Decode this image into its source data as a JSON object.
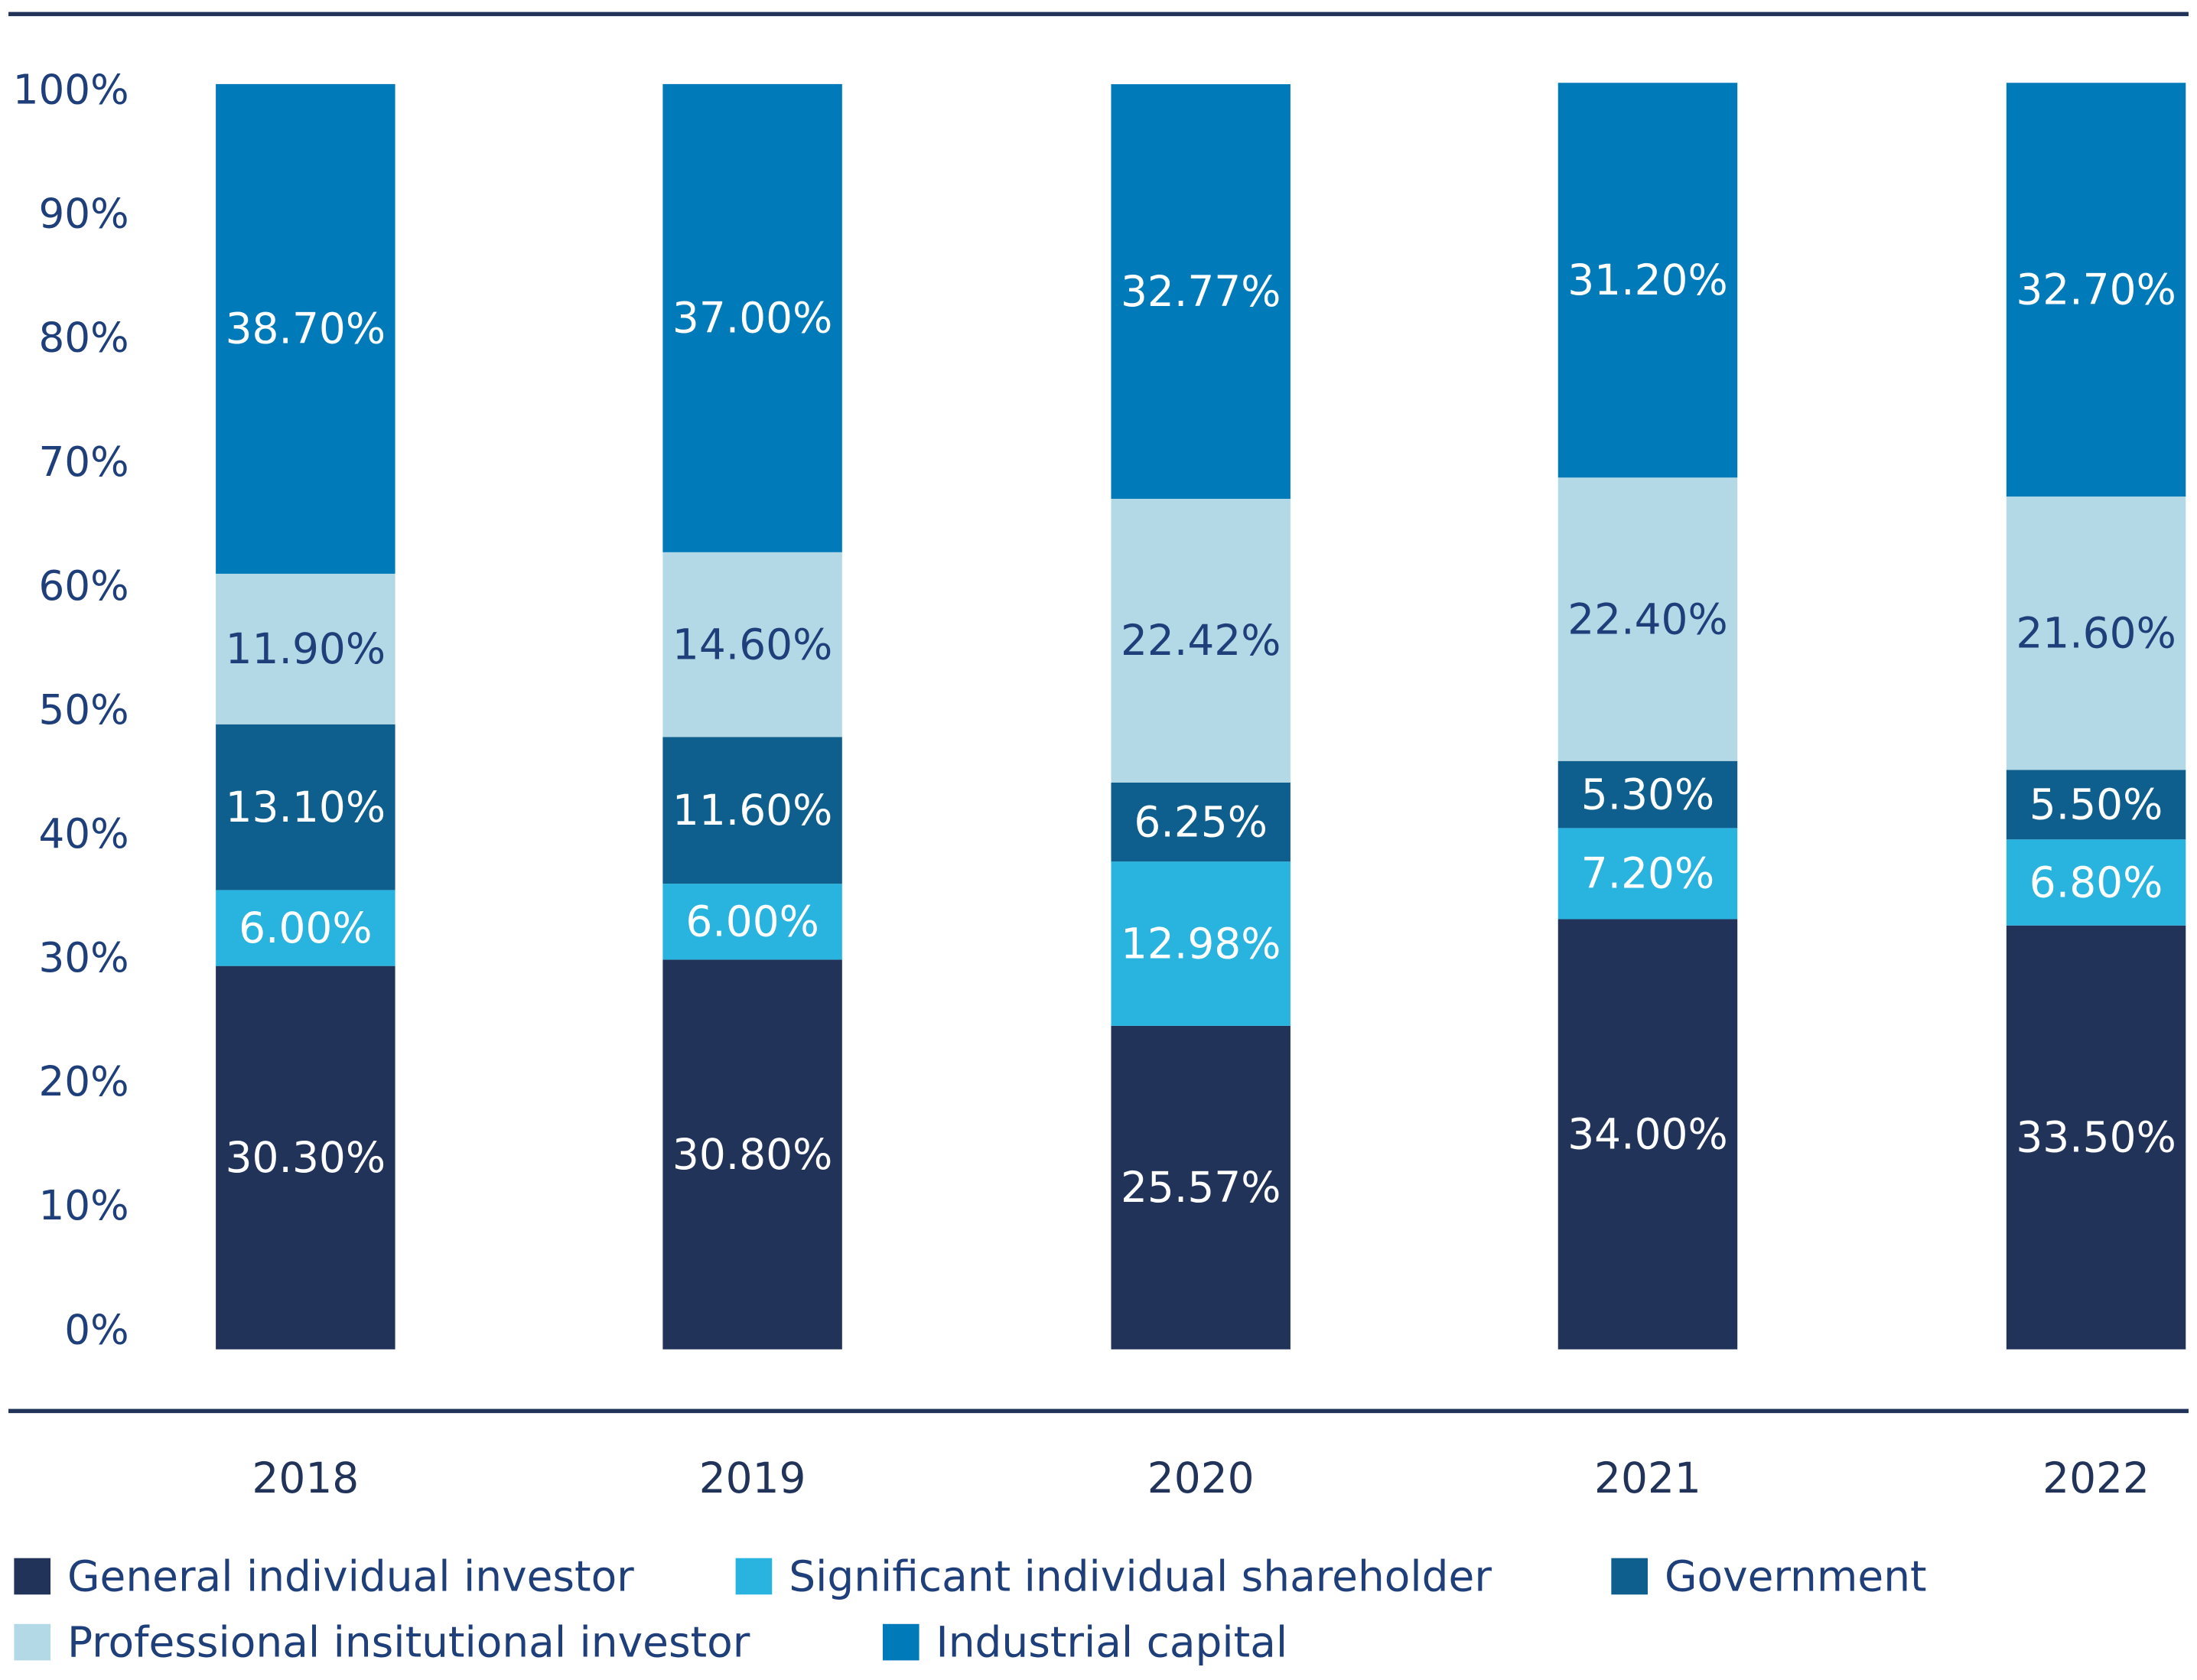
{
  "chart_data": {
    "type": "stacked_bar",
    "categories": [
      "2018",
      "2019",
      "2020",
      "2021",
      "2022"
    ],
    "series": [
      {
        "name": "General individual investor",
        "color": "#22335a",
        "values": [
          30.3,
          30.8,
          25.57,
          34,
          33.5
        ],
        "value_labels": [
          "30.30%",
          "30.80%",
          "25.57%",
          "34.00%",
          "33.50%"
        ]
      },
      {
        "name": "Significant individual shareholder",
        "color": "#29b4e0",
        "values": [
          6,
          6,
          12.98,
          7.2,
          6.8
        ],
        "value_labels": [
          "6.00%",
          "6.00%",
          "12.98%",
          "7.20%",
          "6.80%"
        ]
      },
      {
        "name": "Government",
        "color": "#0e5f8e",
        "values": [
          13.1,
          11.6,
          6.25,
          5.3,
          5.5
        ],
        "value_labels": [
          "13.10%",
          "11.60%",
          "6.25%",
          "5.30%",
          "5.50%"
        ]
      },
      {
        "name": "Professional insitutional investor",
        "color": "#b3d9e6",
        "values": [
          11.9,
          14.6,
          22.42,
          22.4,
          21.6
        ],
        "value_labels": [
          "11.90%",
          "14.60%",
          "22.42%",
          "22.40%",
          "21.60%"
        ]
      },
      {
        "name": "Industrial capital",
        "color": "#007ab8",
        "values": [
          38.7,
          37,
          32.77,
          31.2,
          32.7
        ],
        "value_labels": [
          "38.70%",
          "37.00%",
          "32.77%",
          "31.20%",
          "32.70%"
        ]
      }
    ],
    "ylim": [
      0,
      100
    ],
    "yticks": [
      {
        "value": 0,
        "label": "0%"
      },
      {
        "value": 10,
        "label": "10%"
      },
      {
        "value": 20,
        "label": "20%"
      },
      {
        "value": 30,
        "label": "30%"
      },
      {
        "value": 40,
        "label": "40%"
      },
      {
        "value": 50,
        "label": "50%"
      },
      {
        "value": 60,
        "label": "60%"
      },
      {
        "value": 70,
        "label": "70%"
      },
      {
        "value": 80,
        "label": "80%"
      },
      {
        "value": 90,
        "label": "90%"
      },
      {
        "value": 100,
        "label": "100%"
      }
    ],
    "grid": false
  }
}
